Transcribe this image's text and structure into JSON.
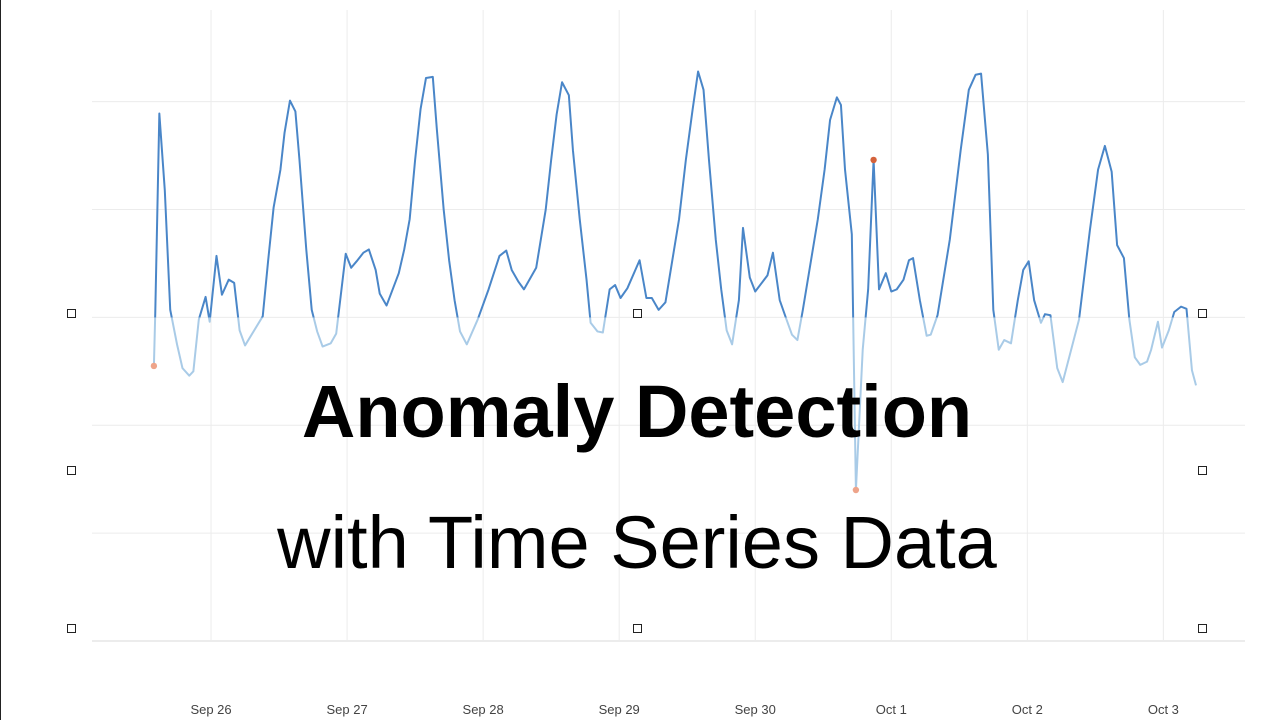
{
  "chart_data": {
    "type": "line",
    "title": "Anomaly Detection",
    "subtitle": "with Time Series Data",
    "xlim": [
      -0.875,
      7.6
    ],
    "xticks": [
      {
        "value": 0,
        "label": "Sep 26"
      },
      {
        "value": 1,
        "label": "Sep 27"
      },
      {
        "value": 2,
        "label": "Sep 28"
      },
      {
        "value": 3,
        "label": "Sep 29"
      },
      {
        "value": 4,
        "label": "Sep 30"
      },
      {
        "value": 5,
        "label": "Oct 1"
      },
      {
        "value": 6,
        "label": "Oct 2"
      },
      {
        "value": 7,
        "label": "Oct 3"
      }
    ],
    "ylim": [
      0,
      5.85
    ],
    "yticks": [
      0,
      1,
      2,
      3,
      4,
      5
    ],
    "grid": true,
    "threshold": 3,
    "x": [
      -0.42,
      -0.41,
      -0.38,
      -0.34,
      -0.3,
      -0.25,
      -0.21,
      -0.16,
      -0.13,
      -0.09,
      -0.04,
      -0.01,
      0.04,
      0.08,
      0.13,
      0.17,
      0.21,
      0.25,
      0.38,
      0.42,
      0.46,
      0.51,
      0.54,
      0.58,
      0.62,
      0.65,
      0.7,
      0.74,
      0.78,
      0.82,
      0.88,
      0.92,
      0.99,
      1.03,
      1.07,
      1.12,
      1.16,
      1.21,
      1.24,
      1.29,
      1.38,
      1.42,
      1.46,
      1.5,
      1.54,
      1.58,
      1.63,
      1.66,
      1.71,
      1.75,
      1.79,
      1.83,
      1.88,
      1.96,
      2.04,
      2.12,
      2.17,
      2.21,
      2.26,
      2.3,
      2.39,
      2.46,
      2.5,
      2.54,
      2.58,
      2.63,
      2.66,
      2.71,
      2.76,
      2.79,
      2.84,
      2.88,
      2.93,
      2.97,
      3.01,
      3.06,
      3.15,
      3.2,
      3.24,
      3.29,
      3.34,
      3.44,
      3.49,
      3.54,
      3.58,
      3.62,
      3.66,
      3.71,
      3.75,
      3.79,
      3.83,
      3.88,
      3.91,
      3.96,
      4.0,
      4.09,
      4.13,
      4.18,
      4.23,
      4.27,
      4.31,
      4.35,
      4.46,
      4.51,
      4.55,
      4.6,
      4.63,
      4.66,
      4.71,
      4.74,
      4.79,
      4.83,
      4.87,
      4.91,
      4.96,
      5.0,
      5.04,
      5.09,
      5.13,
      5.16,
      5.21,
      5.26,
      5.29,
      5.34,
      5.43,
      5.51,
      5.57,
      5.62,
      5.66,
      5.71,
      5.75,
      5.79,
      5.83,
      5.88,
      5.93,
      5.97,
      6.01,
      6.05,
      6.1,
      6.13,
      6.17,
      6.22,
      6.26,
      6.38,
      6.46,
      6.52,
      6.57,
      6.62,
      6.66,
      6.71,
      6.75,
      6.79,
      6.83,
      6.88,
      6.91,
      6.96,
      6.99,
      7.04,
      7.08,
      7.13,
      7.17,
      7.21,
      7.24
    ],
    "series": [
      {
        "color": "#4a86c8",
        "color_below": "#a9cbe7",
        "values": [
          2.55,
          3.04,
          4.89,
          4.18,
          3.07,
          2.75,
          2.53,
          2.46,
          2.5,
          2.98,
          3.19,
          2.96,
          3.57,
          3.21,
          3.35,
          3.32,
          2.88,
          2.74,
          3.01,
          3.53,
          4.02,
          4.37,
          4.71,
          5.01,
          4.91,
          4.46,
          3.63,
          3.07,
          2.87,
          2.73,
          2.76,
          2.85,
          3.59,
          3.46,
          3.52,
          3.6,
          3.63,
          3.44,
          3.22,
          3.11,
          3.41,
          3.63,
          3.91,
          4.46,
          4.93,
          5.22,
          5.23,
          4.74,
          4.0,
          3.53,
          3.16,
          2.87,
          2.75,
          2.98,
          3.26,
          3.57,
          3.62,
          3.44,
          3.33,
          3.26,
          3.46,
          4.0,
          4.46,
          4.88,
          5.18,
          5.06,
          4.55,
          3.91,
          3.35,
          2.95,
          2.87,
          2.86,
          3.26,
          3.3,
          3.18,
          3.27,
          3.53,
          3.18,
          3.18,
          3.07,
          3.14,
          3.91,
          4.46,
          4.93,
          5.28,
          5.11,
          4.46,
          3.72,
          3.26,
          2.88,
          2.75,
          3.16,
          3.83,
          3.37,
          3.24,
          3.39,
          3.6,
          3.16,
          2.98,
          2.84,
          2.79,
          3.07,
          3.91,
          4.37,
          4.83,
          5.04,
          4.97,
          4.37,
          3.77,
          1.4,
          2.7,
          3.26,
          4.46,
          3.26,
          3.41,
          3.24,
          3.26,
          3.35,
          3.53,
          3.55,
          3.16,
          2.83,
          2.84,
          3.02,
          3.72,
          4.55,
          5.11,
          5.25,
          5.26,
          4.51,
          3.07,
          2.7,
          2.79,
          2.76,
          3.16,
          3.44,
          3.52,
          3.16,
          2.95,
          3.03,
          3.02,
          2.53,
          2.4,
          2.98,
          3.81,
          4.37,
          4.59,
          4.35,
          3.67,
          3.55,
          2.98,
          2.63,
          2.56,
          2.59,
          2.7,
          2.96,
          2.72,
          2.88,
          3.05,
          3.1,
          3.08,
          2.51,
          2.37
        ]
      }
    ],
    "anomalies": {
      "x": [
        -0.42,
        4.74,
        4.87
      ],
      "values": [
        2.55,
        1.4,
        4.46
      ],
      "colors": [
        "#eea48a",
        "#eea48a",
        "#d4623b"
      ]
    }
  }
}
